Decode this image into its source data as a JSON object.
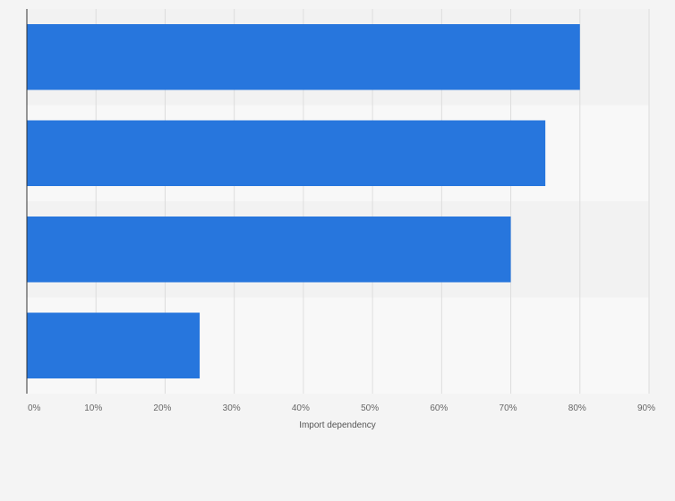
{
  "chart_data": {
    "type": "bar",
    "orientation": "horizontal",
    "title": "",
    "xlabel": "Import dependency",
    "ylabel": "",
    "categories": [
      "",
      "",
      "",
      ""
    ],
    "series": [
      {
        "values": [
          80,
          75,
          70,
          25
        ]
      }
    ],
    "xlim": [
      0,
      90
    ],
    "x_ticks": [
      0,
      10,
      20,
      30,
      40,
      50,
      60,
      70,
      80,
      90
    ],
    "x_tick_labels": [
      "0%",
      "10%",
      "20%",
      "30%",
      "40%",
      "50%",
      "60%",
      "70%",
      "80%",
      "90%"
    ],
    "value_unit": "%",
    "grid": true,
    "legend": "none",
    "colors": {
      "bar": "#2776dd",
      "band_dark": "#f2f2f2",
      "band_light": "#f8f8f8",
      "grid": "#dddddd",
      "axis": "#333333",
      "background": "#f4f4f4"
    }
  }
}
